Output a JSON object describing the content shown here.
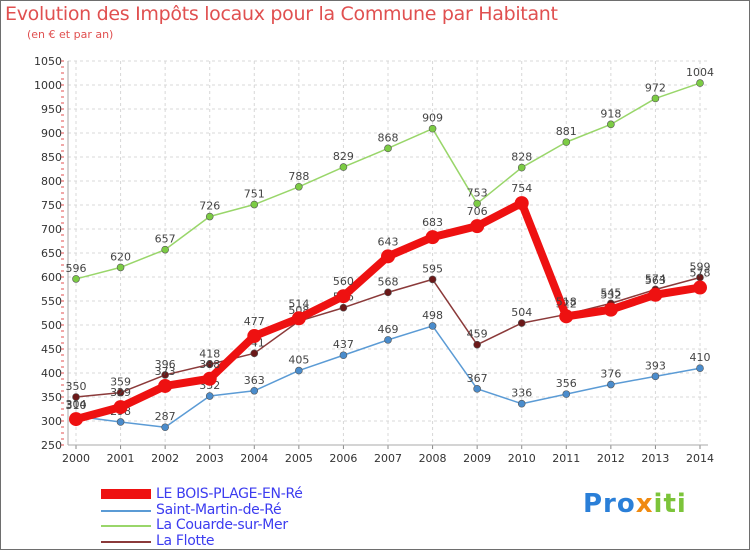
{
  "title": "Evolution des Impôts locaux pour la Commune par Habitant",
  "subtitle": "(en € et par an)",
  "brand": {
    "prefix": "Pro",
    "x": "x",
    "suffix": "iti"
  },
  "chart_data": {
    "type": "line",
    "x": [
      "2000",
      "2001",
      "2002",
      "2003",
      "2004",
      "2005",
      "2006",
      "2007",
      "2008",
      "2009",
      "2010",
      "2011",
      "2012",
      "2013",
      "2014"
    ],
    "ylim": [
      250,
      1050
    ],
    "yticks": [
      250,
      300,
      350,
      400,
      450,
      500,
      550,
      600,
      650,
      700,
      750,
      800,
      850,
      900,
      950,
      1000,
      1050
    ],
    "grid": true,
    "legend_position": "bottom-left",
    "series": [
      {
        "name": "La Couarde-sur-Mer",
        "color": "#99d66a",
        "marker": "#7ccc44",
        "values": [
          596,
          620,
          657,
          726,
          751,
          788,
          829,
          868,
          909,
          753,
          828,
          881,
          918,
          972,
          1004
        ]
      },
      {
        "name": "Saint-Martin-de-Ré",
        "color": "#5b9bd5",
        "marker": "#4a8ccc",
        "values": [
          310,
          298,
          287,
          352,
          363,
          405,
          437,
          469,
          498,
          367,
          336,
          356,
          376,
          393,
          410
        ]
      },
      {
        "name": "La Flotte",
        "color": "#8b3a3a",
        "marker": "#6b1818",
        "values": [
          350,
          359,
          396,
          418,
          441,
          508,
          536,
          568,
          595,
          459,
          504,
          522,
          545,
          574,
          599
        ]
      },
      {
        "name": "LE BOIS-PLAGE-EN-Ré",
        "color": "#ee1111",
        "marker": "#ee1111",
        "values": [
          304,
          329,
          373,
          388,
          477,
          514,
          560,
          643,
          683,
          706,
          754,
          518,
          532,
          563,
          578
        ]
      }
    ],
    "legend_order": [
      "LE BOIS-PLAGE-EN-Ré",
      "Saint-Martin-de-Ré",
      "La Couarde-sur-Mer",
      "La Flotte"
    ]
  }
}
